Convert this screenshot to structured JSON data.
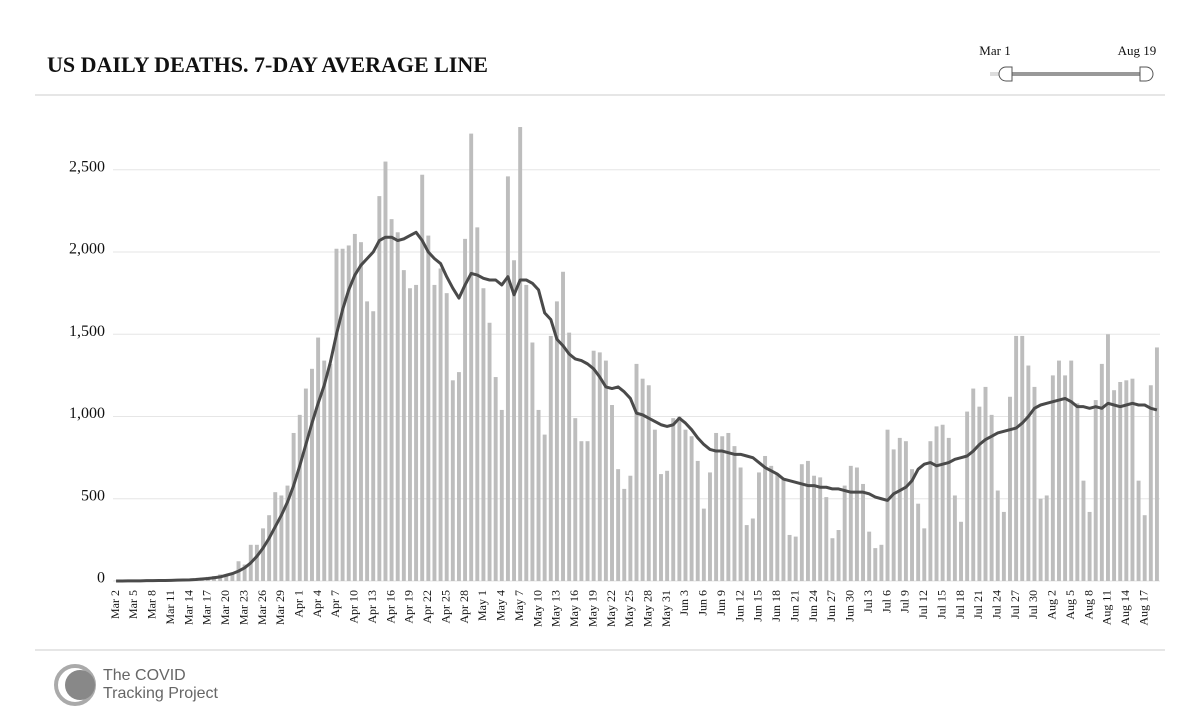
{
  "chart_data": {
    "type": "bar-line",
    "title": "US DAILY DEATHS. 7-DAY AVERAGE LINE",
    "slider": {
      "start": "Mar 1",
      "end": "Aug 19"
    },
    "logo_text": [
      "The COVID",
      "Tracking Project"
    ],
    "categories": [
      "Mar 2",
      null,
      null,
      "Mar 5",
      null,
      null,
      "Mar 8",
      null,
      null,
      "Mar 11",
      null,
      null,
      "Mar 14",
      null,
      null,
      "Mar 17",
      null,
      null,
      "Mar 20",
      null,
      null,
      "Mar 23",
      null,
      null,
      "Mar 26",
      null,
      null,
      "Mar 29",
      null,
      null,
      "Apr 1",
      null,
      null,
      "Apr 4",
      null,
      null,
      "Apr 7",
      null,
      null,
      "Apr 10",
      null,
      null,
      "Apr 13",
      null,
      null,
      "Apr 16",
      null,
      null,
      "Apr 19",
      null,
      null,
      "Apr 22",
      null,
      null,
      "Apr 25",
      null,
      null,
      "Apr 28",
      null,
      null,
      "May 1",
      null,
      null,
      "May 4",
      null,
      null,
      "May 7",
      null,
      null,
      "May 10",
      null,
      null,
      "May 13",
      null,
      null,
      "May 16",
      null,
      null,
      "May 19",
      null,
      null,
      "May 22",
      null,
      null,
      "May 25",
      null,
      null,
      "May 28",
      null,
      null,
      "May 31",
      null,
      null,
      "Jun 3",
      null,
      null,
      "Jun 6",
      null,
      null,
      "Jun 9",
      null,
      null,
      "Jun 12",
      null,
      null,
      "Jun 15",
      null,
      null,
      "Jun 18",
      null,
      null,
      "Jun 21",
      null,
      null,
      "Jun 24",
      null,
      null,
      "Jun 27",
      null,
      null,
      "Jun 30",
      null,
      null,
      "Jul 3",
      null,
      null,
      "Jul 6",
      null,
      null,
      "Jul 9",
      null,
      null,
      "Jul 12",
      null,
      null,
      "Jul 15",
      null,
      null,
      "Jul 18",
      null,
      null,
      "Jul 21",
      null,
      null,
      "Jul 24",
      null,
      null,
      "Jul 27",
      null,
      null,
      "Jul 30",
      null,
      null,
      "Aug 2",
      null,
      null,
      "Aug 5",
      null,
      null,
      "Aug 8",
      null,
      null,
      "Aug 11",
      null,
      null,
      "Aug 14",
      null,
      null,
      "Aug 17",
      null,
      null
    ],
    "series": [
      {
        "type": "bar",
        "color": "#bdbdbd",
        "values": [
          1,
          2,
          2,
          1,
          3,
          2,
          5,
          4,
          3,
          7,
          9,
          8,
          10,
          12,
          20,
          25,
          30,
          40,
          40,
          50,
          120,
          100,
          220,
          220,
          320,
          400,
          540,
          520,
          580,
          900,
          1010,
          1170,
          1290,
          1480,
          1340,
          1320,
          2020,
          2020,
          2040,
          2110,
          2060,
          1700,
          1640,
          2340,
          2550,
          2200,
          2120,
          1890,
          1780,
          1800,
          2470,
          2100,
          1800,
          1900,
          1750,
          1220,
          1270,
          2080,
          2720,
          2150,
          1780,
          1570,
          1240,
          1040,
          2460,
          1950,
          2760,
          1800,
          1450,
          1040,
          890,
          1490,
          1700,
          1880,
          1510,
          990,
          850,
          850,
          1400,
          1390,
          1340,
          1070,
          680,
          560,
          640,
          1320,
          1230,
          1190,
          920,
          650,
          670,
          990,
          1000,
          920,
          880,
          730,
          440,
          660,
          900,
          880,
          900,
          820,
          690,
          340,
          380,
          660,
          760,
          700,
          650,
          620,
          280,
          270,
          710,
          730,
          640,
          630,
          510,
          260,
          310,
          580,
          700,
          690,
          590,
          300,
          200,
          220,
          920,
          800,
          870,
          850,
          680,
          470,
          320,
          850,
          940,
          950,
          870,
          520,
          360,
          1030,
          1170,
          1060,
          1180,
          1010,
          550,
          420,
          1120,
          1490,
          1490,
          1310,
          1180,
          500,
          520,
          1250,
          1340,
          1250,
          1340,
          1080,
          610,
          420,
          1100,
          1320,
          1500,
          1160,
          1210,
          1220,
          1230,
          610,
          400,
          1190,
          1420
        ]
      },
      {
        "type": "line",
        "color": "#4a4a4a",
        "values": [
          0,
          0,
          1,
          1,
          1,
          2,
          2,
          3,
          3,
          4,
          5,
          6,
          7,
          9,
          12,
          15,
          20,
          25,
          35,
          45,
          60,
          80,
          110,
          150,
          200,
          260,
          330,
          400,
          480,
          580,
          700,
          830,
          960,
          1080,
          1190,
          1330,
          1500,
          1650,
          1770,
          1860,
          1920,
          1960,
          2000,
          2070,
          2090,
          2090,
          2070,
          2080,
          2100,
          2120,
          2070,
          2000,
          1960,
          1930,
          1850,
          1780,
          1720,
          1800,
          1870,
          1860,
          1840,
          1830,
          1830,
          1800,
          1850,
          1740,
          1830,
          1830,
          1810,
          1770,
          1630,
          1590,
          1470,
          1430,
          1380,
          1350,
          1340,
          1320,
          1290,
          1240,
          1180,
          1170,
          1180,
          1150,
          1110,
          1020,
          1010,
          990,
          970,
          950,
          940,
          950,
          990,
          960,
          920,
          870,
          830,
          800,
          790,
          790,
          780,
          770,
          770,
          760,
          750,
          720,
          690,
          670,
          650,
          620,
          610,
          600,
          590,
          580,
          580,
          570,
          570,
          560,
          560,
          550,
          540,
          540,
          540,
          530,
          510,
          500,
          490,
          530,
          550,
          570,
          610,
          680,
          710,
          720,
          700,
          710,
          720,
          740,
          750,
          760,
          790,
          830,
          860,
          880,
          900,
          910,
          920,
          930,
          960,
          1000,
          1050,
          1070,
          1080,
          1090,
          1100,
          1110,
          1090,
          1060,
          1060,
          1050,
          1060,
          1050,
          1080,
          1070,
          1060,
          1070,
          1080,
          1070,
          1070,
          1050,
          1040
        ]
      }
    ],
    "ylim": [
      0,
      2900
    ],
    "yticks": [
      0,
      500,
      {
        "value": 1000,
        "label": "1,000"
      },
      {
        "value": 1500,
        "label": "1,500"
      },
      {
        "value": 2000,
        "label": "2,000"
      },
      {
        "value": 2500,
        "label": "2,500"
      }
    ],
    "grid": true
  }
}
